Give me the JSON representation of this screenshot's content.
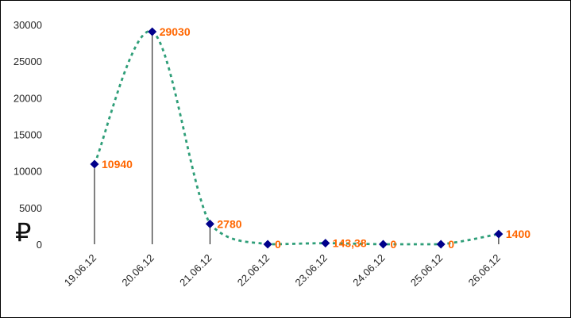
{
  "chart_data": {
    "type": "line",
    "categories": [
      "19.06.12",
      "20.06.12",
      "21.06.12",
      "22.06.12",
      "23.06.12",
      "24.06.12",
      "25.06.12",
      "26.06.12"
    ],
    "values": [
      10940,
      29030,
      2780,
      0,
      143.38,
      0,
      0,
      1400
    ],
    "point_labels": [
      "10940",
      "29030",
      "2780",
      "0",
      "143,38",
      "0",
      "0",
      "1400"
    ],
    "title": "",
    "xlabel": "",
    "ylabel": "",
    "currency_symbol": "₽",
    "ylim": [
      0,
      30000
    ],
    "yticks": [
      0,
      5000,
      10000,
      15000,
      20000,
      25000,
      30000
    ],
    "grid": false,
    "legend": "none",
    "line_style": "dashed-smooth",
    "line_color": "#2e9e78",
    "marker_shape": "diamond",
    "marker_color": "#00008b",
    "label_color": "#ff6600",
    "axis_text_color": "#262626",
    "drop_line_color": "#000000",
    "background_color": "#ffffff",
    "border_color": "#000000"
  }
}
